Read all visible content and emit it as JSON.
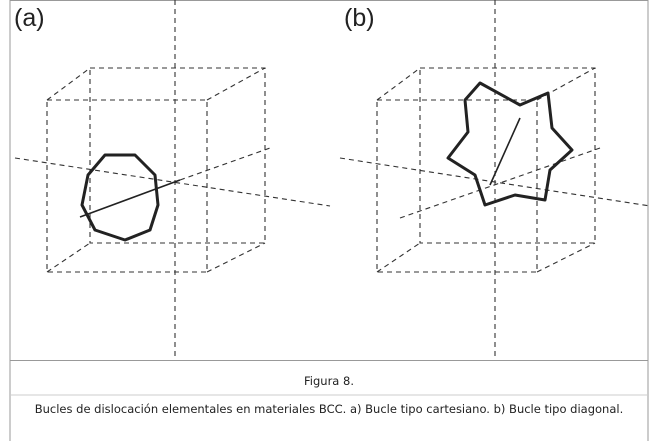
{
  "figure": {
    "panels": [
      "(a)",
      "(b)"
    ],
    "label": "Figura 8.",
    "caption": "Bucles de dislocación elementales en materiales BCC. a) Bucle tipo cartesiano. b) Bucle tipo diagonal."
  }
}
